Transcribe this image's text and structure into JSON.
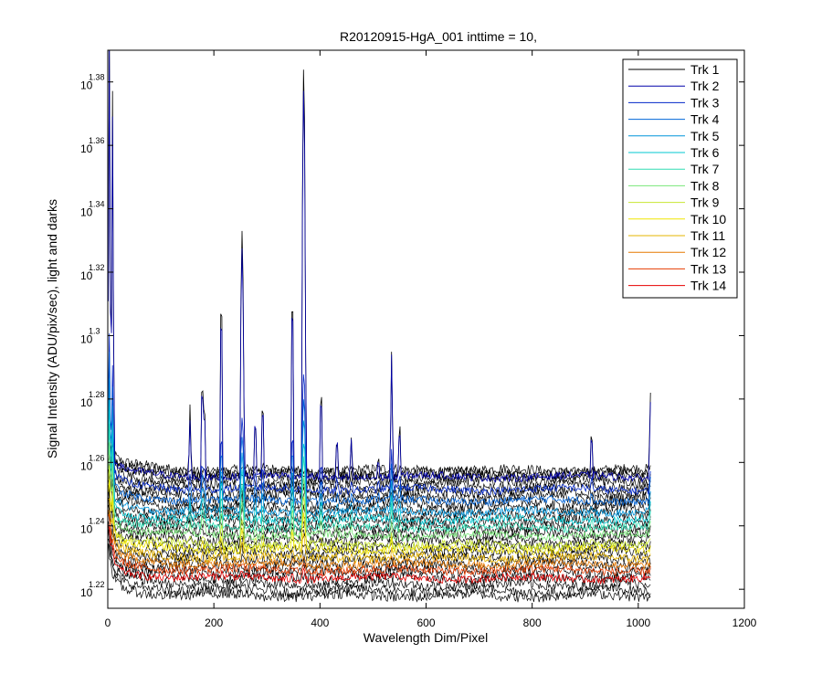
{
  "chart_data": {
    "type": "line",
    "title": "R20120915-HgA_001 inttime = 10,",
    "xlabel": "Wavelength Dim/Pixel",
    "ylabel": "Signal Intensity (ADU/pix/sec), light and darks",
    "xlim": [
      0,
      1200
    ],
    "ylim": [
      1.214,
      1.39
    ],
    "yscale": "log10 (tick labels shown as 10^exponent)",
    "x_ticks": [
      "0",
      "200",
      "400",
      "600",
      "800",
      "1000",
      "1200"
    ],
    "y_tick_base": "10",
    "y_tick_exponents": [
      "1.22",
      "1.24",
      "1.26",
      "1.28",
      "1.3",
      "1.32",
      "1.34",
      "1.36",
      "1.38"
    ],
    "legend_position": "top-right",
    "grid": false,
    "peaks": [
      {
        "x": 3,
        "height": 0.128
      },
      {
        "x": 9,
        "height": 0.112
      },
      {
        "x": 155,
        "height": 0.02
      },
      {
        "x": 178,
        "height": 0.04
      },
      {
        "x": 182,
        "height": 0.03
      },
      {
        "x": 214,
        "height": 0.075
      },
      {
        "x": 252,
        "height": 0.083
      },
      {
        "x": 255,
        "height": 0.06
      },
      {
        "x": 278,
        "height": 0.023
      },
      {
        "x": 292,
        "height": 0.03
      },
      {
        "x": 348,
        "height": 0.077
      },
      {
        "x": 368,
        "height": 0.135
      },
      {
        "x": 371,
        "height": 0.11
      },
      {
        "x": 402,
        "height": 0.034
      },
      {
        "x": 432,
        "height": 0.016
      },
      {
        "x": 459,
        "height": 0.012
      },
      {
        "x": 510,
        "height": 0.007
      },
      {
        "x": 535,
        "height": 0.04
      },
      {
        "x": 550,
        "height": 0.02
      },
      {
        "x": 912,
        "height": 0.016
      },
      {
        "x": 1023,
        "height": 0.025
      }
    ],
    "series": [
      {
        "name": "Trk 1",
        "color": "#000000",
        "baseline": 1.2565,
        "noise": 0.0018
      },
      {
        "name": "Trk 2",
        "color": "#0000aa",
        "baseline": 1.2555,
        "noise": 0.0012
      },
      {
        "name": "Trk 3",
        "color": "#0026c8",
        "baseline": 1.2515,
        "noise": 0.0012
      },
      {
        "name": "Trk 4",
        "color": "#0064d8",
        "baseline": 1.248,
        "noise": 0.0012
      },
      {
        "name": "Trk 5",
        "color": "#0096dc",
        "baseline": 1.2445,
        "noise": 0.0012
      },
      {
        "name": "Trk 6",
        "color": "#00c8d2",
        "baseline": 1.242,
        "noise": 0.0012
      },
      {
        "name": "Trk 7",
        "color": "#30dcb4",
        "baseline": 1.2395,
        "noise": 0.0012
      },
      {
        "name": "Trk 8",
        "color": "#78e678",
        "baseline": 1.237,
        "noise": 0.0012
      },
      {
        "name": "Trk 9",
        "color": "#c8e632",
        "baseline": 1.234,
        "noise": 0.0013
      },
      {
        "name": "Trk 10",
        "color": "#f0e600",
        "baseline": 1.2325,
        "noise": 0.0013
      },
      {
        "name": "Trk 11",
        "color": "#e6b400",
        "baseline": 1.23,
        "noise": 0.0013
      },
      {
        "name": "Trk 12",
        "color": "#e67800",
        "baseline": 1.228,
        "noise": 0.0013
      },
      {
        "name": "Trk 13",
        "color": "#e63c00",
        "baseline": 1.226,
        "noise": 0.0013
      },
      {
        "name": "Trk 14",
        "color": "#e60000",
        "baseline": 1.2235,
        "noise": 0.0012
      }
    ]
  }
}
